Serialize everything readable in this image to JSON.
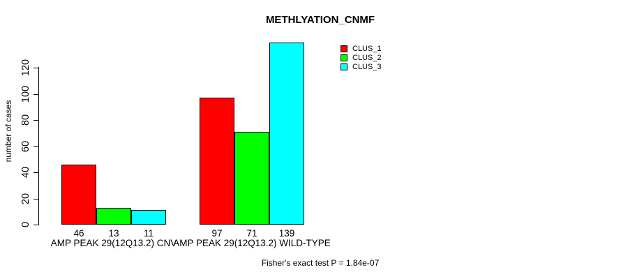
{
  "chart_data": {
    "type": "bar",
    "title": "METHLYATION_CNMF",
    "ylabel": "number of cases",
    "xlabel": "",
    "categories": [
      "AMP PEAK 29(12Q13.2) CNV",
      "AMP PEAK 29(12Q13.2) WILD-TYPE"
    ],
    "series": [
      {
        "name": "CLUS_1",
        "color": "#ff0000",
        "values": [
          46,
          97
        ]
      },
      {
        "name": "CLUS_2",
        "color": "#00ff00",
        "values": [
          13,
          71
        ]
      },
      {
        "name": "CLUS_3",
        "color": "#00ffff",
        "values": [
          11,
          139
        ]
      }
    ],
    "bar_value_labels": [
      [
        46,
        13,
        11
      ],
      [
        97,
        71,
        139
      ]
    ],
    "yticks": [
      0,
      20,
      40,
      60,
      80,
      100,
      120
    ],
    "ylim": [
      0,
      139
    ],
    "grid": false,
    "legend_position": "top-right",
    "annotation": "Fisher's exact test P = 1.84e-07"
  },
  "legend": {
    "entries": [
      {
        "label": "CLUS_1",
        "color": "#ff0000"
      },
      {
        "label": "CLUS_2",
        "color": "#00ff00"
      },
      {
        "label": "CLUS_3",
        "color": "#00ffff"
      }
    ]
  },
  "colors": {
    "background": "#ffffff",
    "axis": "#000000",
    "text": "#000000"
  }
}
